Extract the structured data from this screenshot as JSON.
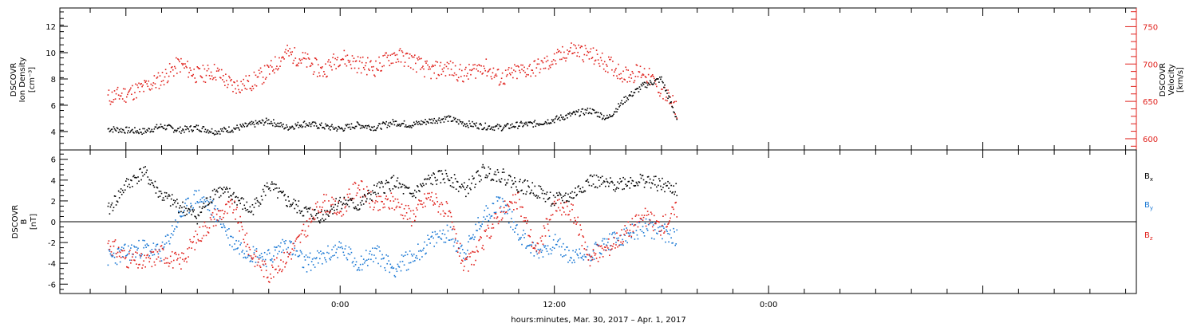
{
  "chart_data": [
    {
      "type": "scatter",
      "panel": "top",
      "ylabel_left": [
        "DSCOVR",
        "Ion Density",
        "[cm⁻³]"
      ],
      "ylabel_right": [
        "DSCOVR",
        "Velocity",
        "[km/s]"
      ],
      "ylim_left": [
        2.6,
        13.4
      ],
      "ylim_right": [
        585,
        775
      ],
      "yticks_left": [
        "4",
        "6",
        "8",
        "10",
        "12"
      ],
      "yticks_right": [
        "600",
        "650",
        "700",
        "750"
      ],
      "colors": {
        "density": "#000000",
        "velocity": "#e0201b"
      },
      "series": [
        {
          "color_key": "density",
          "axis": "left",
          "x": [
            -13,
            -12,
            -11,
            -10,
            -9,
            -8,
            -7,
            -6,
            -5,
            -4,
            -3,
            -2,
            -1,
            0,
            1,
            2,
            3,
            4,
            5,
            6,
            7,
            8,
            9,
            10,
            11,
            12,
            13,
            14,
            15,
            16,
            17,
            18,
            19
          ],
          "values": [
            4.2,
            4.1,
            4.0,
            4.4,
            4.1,
            4.3,
            4.0,
            4.2,
            4.5,
            4.8,
            4.3,
            4.6,
            4.4,
            4.2,
            4.5,
            4.3,
            4.7,
            4.5,
            4.8,
            5.0,
            4.6,
            4.4,
            4.3,
            4.5,
            4.6,
            4.9,
            5.3,
            5.6,
            5.0,
            6.5,
            7.5,
            8.0,
            4.5
          ]
        },
        {
          "color_key": "velocity",
          "axis": "right",
          "x": [
            -13,
            -12,
            -11,
            -10,
            -9,
            -8,
            -7,
            -6,
            -5,
            -4,
            -3,
            -2,
            -1,
            0,
            1,
            2,
            3,
            4,
            5,
            6,
            7,
            8,
            9,
            10,
            11,
            12,
            13,
            14,
            15,
            16,
            17,
            18,
            19
          ],
          "values": [
            655,
            660,
            668,
            680,
            700,
            685,
            690,
            670,
            675,
            690,
            715,
            705,
            690,
            710,
            700,
            695,
            712,
            705,
            690,
            695,
            685,
            698,
            680,
            690,
            695,
            705,
            720,
            712,
            700,
            685,
            690,
            665,
            635
          ]
        }
      ]
    },
    {
      "type": "scatter",
      "panel": "bottom",
      "ylabel": [
        "DSCOVR",
        "B",
        "[nT]"
      ],
      "ylim": [
        -6.9,
        6.9
      ],
      "yticks": [
        "-6",
        "-4",
        "-2",
        "0",
        "2",
        "4",
        "6"
      ],
      "colors": {
        "bx": "#000000",
        "by": "#1a78d4",
        "bz": "#e0201b"
      },
      "legend": [
        {
          "label": "B",
          "sub": "x",
          "color_key": "bx"
        },
        {
          "label": "B",
          "sub": "y",
          "color_key": "by"
        },
        {
          "label": "B",
          "sub": "z",
          "color_key": "bz"
        }
      ],
      "series": [
        {
          "color_key": "bx",
          "x": [
            -13,
            -12,
            -11,
            -10,
            -9,
            -8,
            -7,
            -6,
            -5,
            -4,
            -3,
            -2,
            -1,
            0,
            1,
            2,
            3,
            4,
            5,
            6,
            7,
            8,
            9,
            10,
            11,
            12,
            13,
            14,
            15,
            16,
            17,
            18,
            19
          ],
          "values": [
            1.0,
            3.5,
            4.8,
            2.5,
            1.5,
            0.5,
            3.0,
            2.5,
            1.0,
            3.5,
            2.0,
            1.0,
            0.5,
            2.0,
            1.5,
            3.0,
            3.8,
            2.5,
            4.0,
            4.4,
            3.0,
            4.8,
            4.5,
            3.5,
            3.0,
            2.0,
            2.5,
            4.0,
            3.5,
            3.8,
            4.0,
            3.5,
            3.0
          ]
        },
        {
          "color_key": "by",
          "x": [
            -13,
            -12,
            -11,
            -10,
            -9,
            -8,
            -7,
            -6,
            -5,
            -4,
            -3,
            -2,
            -1,
            0,
            1,
            2,
            3,
            4,
            5,
            6,
            7,
            8,
            9,
            10,
            11,
            12,
            13,
            14,
            15,
            16,
            17,
            18,
            19
          ],
          "values": [
            -3.5,
            -3.0,
            -2.5,
            -3.0,
            0.5,
            2.5,
            1.0,
            -2.0,
            -3.0,
            -3.5,
            -2.0,
            -4.0,
            -3.5,
            -2.5,
            -4.0,
            -3.0,
            -4.5,
            -3.5,
            -2.0,
            -1.0,
            -3.0,
            0.5,
            2.0,
            -1.0,
            -3.0,
            -2.0,
            -3.5,
            -3.0,
            -2.0,
            -1.5,
            -0.5,
            -1.0,
            -1.5
          ]
        },
        {
          "color_key": "bz",
          "x": [
            -13,
            -12,
            -11,
            -10,
            -9,
            -8,
            -7,
            -6,
            -5,
            -4,
            -3,
            -2,
            -1,
            0,
            1,
            2,
            3,
            4,
            5,
            6,
            7,
            8,
            9,
            10,
            11,
            12,
            13,
            14,
            15,
            16,
            17,
            18,
            19
          ],
          "values": [
            -2.0,
            -3.5,
            -4.0,
            -3.0,
            -4.0,
            -1.5,
            0.5,
            1.5,
            -3.0,
            -5.0,
            -3.5,
            -1.0,
            2.0,
            1.0,
            3.5,
            1.5,
            2.0,
            0.5,
            2.5,
            1.0,
            -4.5,
            -2.0,
            1.0,
            2.0,
            -3.0,
            1.5,
            1.0,
            -3.5,
            -2.5,
            -1.0,
            0.5,
            -0.5,
            1.5
          ]
        }
      ]
    }
  ],
  "x_axis": {
    "label": "hours:minutes, Mar. 30, 2017 – Apr. 1, 2017",
    "range_hours": [
      -15.7,
      44.6
    ],
    "major_ticks": [
      {
        "hour": 0,
        "label": "0:00"
      },
      {
        "hour": 12,
        "label": "12:00"
      },
      {
        "hour": 24,
        "label": "0:00"
      }
    ],
    "minor_tick_step_hours": 2
  }
}
